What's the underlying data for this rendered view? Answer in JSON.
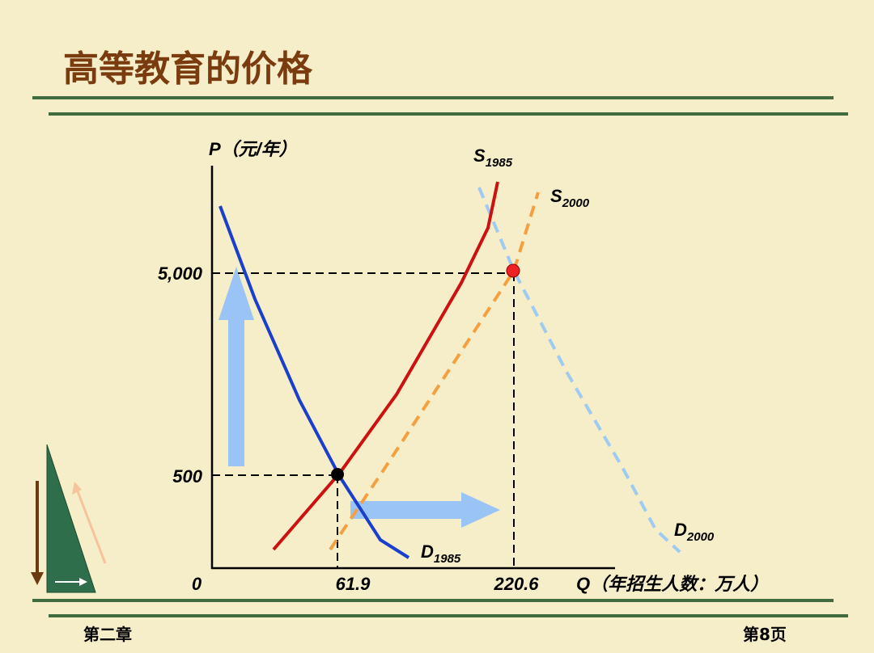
{
  "header": {
    "title": "高等教育的价格"
  },
  "diagram": {
    "y_axis_label": "P（元/年）",
    "x_axis_label": "Q（年招生人数：万人）",
    "origin": "0",
    "y_ticks": [
      "5,000",
      "500"
    ],
    "x_ticks": [
      "61.9",
      "220.6"
    ],
    "curves": [
      {
        "letter": "S",
        "sub": "1985"
      },
      {
        "letter": "S",
        "sub": "2000"
      },
      {
        "letter": "D",
        "sub": "1985"
      },
      {
        "letter": "D",
        "sub": "2000"
      }
    ]
  },
  "footer": {
    "chapter": "第二章",
    "page": "第8页"
  }
}
